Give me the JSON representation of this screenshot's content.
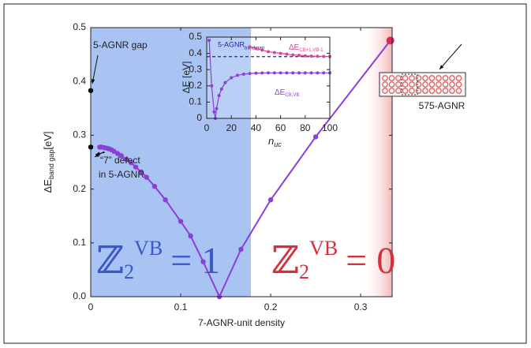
{
  "chart_data": [
    {
      "type": "line",
      "x_label": "7-AGNR-unit density",
      "y_label": "ΔE",
      "y_label_sub": "band gap",
      "y_label_unit": "[eV]",
      "xlim": [
        0,
        0.335
      ],
      "ylim": [
        0,
        0.5
      ],
      "xticks": [
        0,
        0.1,
        0.2,
        0.3
      ],
      "yticks": [
        {
          "value": 0,
          "label": "0.0"
        },
        0.1,
        0.2,
        0.3,
        0.4,
        0.5
      ],
      "regions": [
        {
          "from": 0,
          "to": 0.178,
          "color": "#a9c3f3"
        },
        {
          "from": 0.3,
          "to": 0.335,
          "color": "#f6cfcf"
        }
      ],
      "series": [
        {
          "color": "#8b3fd6",
          "end_color": "#e0245e",
          "mode": "lines+markers",
          "x": [
            0.01,
            0.012,
            0.015,
            0.018,
            0.02,
            0.023,
            0.026,
            0.03,
            0.034,
            0.04,
            0.045,
            0.05,
            0.056,
            0.062,
            0.071,
            0.083,
            0.1,
            0.111,
            0.125,
            0.143,
            0.167,
            0.2,
            0.25,
            0.333
          ],
          "values": [
            0.278,
            0.278,
            0.277,
            0.276,
            0.275,
            0.273,
            0.27,
            0.266,
            0.262,
            0.255,
            0.249,
            0.241,
            0.232,
            0.222,
            0.205,
            0.18,
            0.14,
            0.113,
            0.065,
            0.0,
            0.088,
            0.18,
            0.297,
            0.476
          ]
        },
        {
          "color": "#000000",
          "mode": "markers",
          "x": [
            0,
            0
          ],
          "values": [
            0.383,
            0.278
          ]
        }
      ],
      "annotations": [
        "5-AGNR gap",
        "“7” defect",
        "in 5-AGNR",
        "575-AGNR"
      ],
      "phase_labels": [
        {
          "symbol": "ℤ",
          "sub": "2",
          "sup": "VB",
          "rest": "= 1",
          "color": "#3b57c8"
        },
        {
          "symbol": "ℤ",
          "sub": "2",
          "sup": "VB",
          "rest": "= 0",
          "color": "#d6303c"
        }
      ]
    },
    {
      "type": "line",
      "x_label": "n",
      "x_label_sub": "uc",
      "y_label": "ΔE [eV]",
      "xlim": [
        0,
        100
      ],
      "ylim": [
        0,
        0.5
      ],
      "xticks": [
        0,
        20,
        40,
        60,
        80,
        100
      ],
      "yticks": [
        0,
        0.1,
        0.2,
        0.3,
        0.4,
        0.5
      ],
      "reference": {
        "name": "5-AGNR",
        "name_sub": "band gap",
        "value": 0.38,
        "color": "#1a2a9a"
      },
      "series": [
        {
          "name": "ΔE",
          "name_sub": "CB+1,VB-1",
          "color": "#e0409a",
          "x": [
            35,
            40,
            45,
            50,
            55,
            60,
            65,
            70,
            75,
            80,
            85,
            90,
            95,
            100
          ],
          "values": [
            0.44,
            0.43,
            0.42,
            0.41,
            0.405,
            0.4,
            0.395,
            0.39,
            0.388,
            0.385,
            0.383,
            0.382,
            0.381,
            0.38
          ]
        },
        {
          "name": "ΔE",
          "name_sub": "CB,VB",
          "color": "#8b3fd6",
          "x": [
            2,
            4,
            6,
            7,
            8,
            10,
            12,
            15,
            20,
            25,
            30,
            35,
            40,
            45,
            50,
            55,
            60,
            65,
            70,
            75,
            80,
            85,
            90,
            95,
            100
          ],
          "values": [
            0.48,
            0.2,
            0.04,
            0.0,
            0.06,
            0.14,
            0.18,
            0.22,
            0.25,
            0.265,
            0.272,
            0.276,
            0.278,
            0.279,
            0.28,
            0.28,
            0.28,
            0.28,
            0.28,
            0.28,
            0.28,
            0.28,
            0.28,
            0.28,
            0.28
          ]
        }
      ]
    }
  ]
}
